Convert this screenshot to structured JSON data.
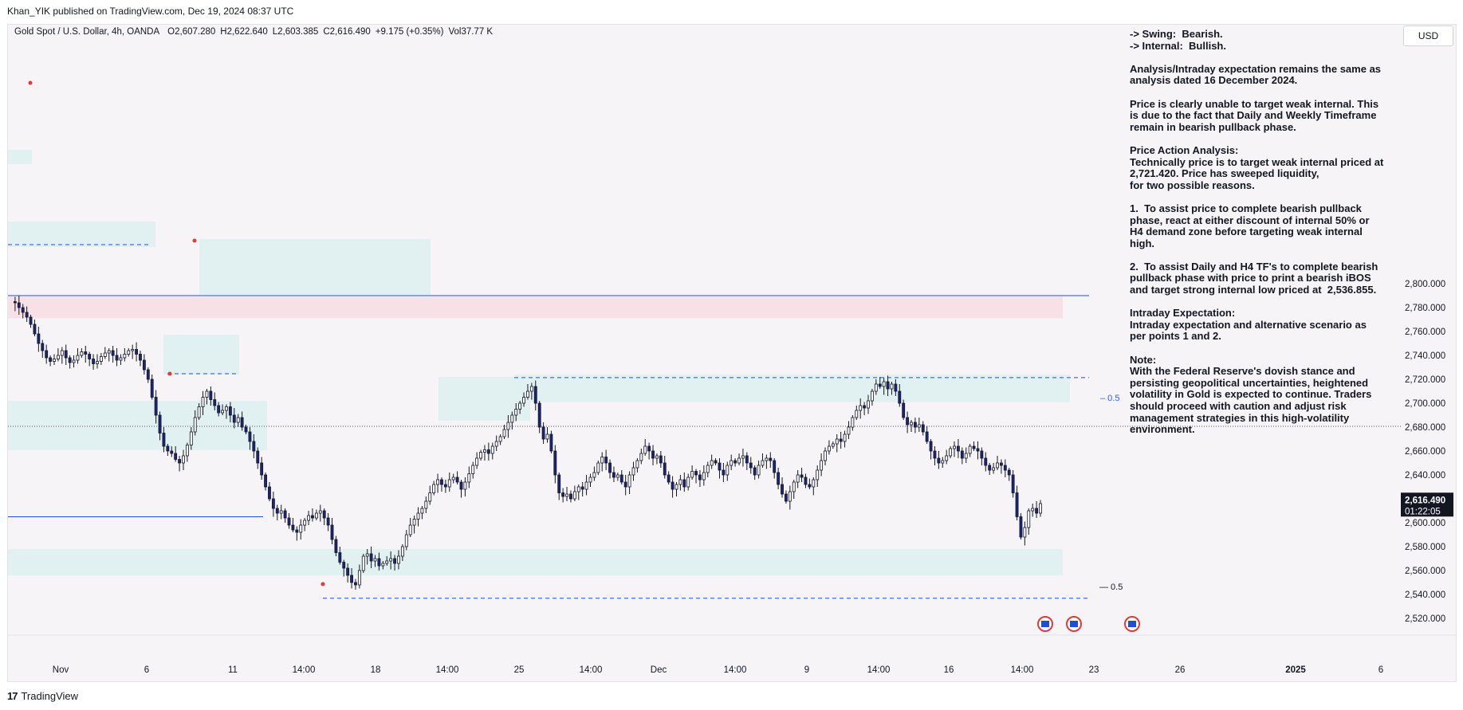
{
  "header": {
    "publisher_line": "Khan_YIK published on TradingView.com, Dec 19, 2024 08:37 UTC"
  },
  "legend": {
    "symbol": "Gold Spot / U.S. Dollar, 4h, OANDA",
    "open": "O2,607.280",
    "high": "H2,622.640",
    "low": "L2,603.385",
    "close": "C2,616.490",
    "change": "+9.175 (+0.35%)",
    "volume": "Vol37.77 K"
  },
  "currency_button": "USD",
  "analysis_text": "-> Swing:  Bearish.\n-> Internal:  Bullish.\n\nAnalysis/Intraday expectation remains the same as analysis dated 16 December 2024.\n\nPrice is clearly unable to target weak internal. This is due to the fact that Daily and Weekly Timeframe remain in bearish pullback phase.\n\nPrice Action Analysis:\nTechnically price is to target weak internal priced at 2,721.420. Price has sweeped liquidity,\nfor two possible reasons.\n\n1.  To assist price to complete bearish pullback phase, react at either discount of internal 50% or H4 demand zone before targeting weak internal high.\n\n2.  To assist Daily and H4 TF's to complete bearish pullback phase with price to print a bearish iBOS and target strong internal low priced at  2,536.855.\n\nIntraday Expectation:\nIntraday expectation and alternative scenario as per points 1 and 2.\n\nNote:\nWith the Federal Reserve's dovish stance and persisting geopolitical uncertainties, heightened volatility in Gold is expected to continue. Traders should proceed with caution and adjust risk management strategies in this high-volatility environment.",
  "price_label": {
    "price": "2,616.490",
    "countdown": "01:22:05"
  },
  "footer": {
    "brand": "TradingView",
    "logo_glyph": "17"
  },
  "colors": {
    "bull": "#ffffff",
    "bear": "#1a237e",
    "zone_supply": "#f8e1e6",
    "zone_demand": "#e1f0f1",
    "blue_line": "#1e4fd0",
    "pivot": "#e53935"
  },
  "chart_data": {
    "type": "candlestick",
    "symbol": "Gold Spot / U.S. Dollar, 4h, OANDA",
    "ylim": [
      2510,
      2810
    ],
    "y_ticks": [
      "2,800.000",
      "2,780.000",
      "2,760.000",
      "2,740.000",
      "2,720.000",
      "2,700.000",
      "2,680.000",
      "2,660.000",
      "2,640.000",
      "2,620.000",
      "2,600.000",
      "2,580.000",
      "2,560.000",
      "2,540.000",
      "2,520.000"
    ],
    "x_ticks": [
      "Nov",
      "6",
      "11",
      "14:00",
      "18",
      "14:00",
      "25",
      "14:00",
      "Dec",
      "14:00",
      "9",
      "14:00",
      "16",
      "14:00",
      "23",
      "26",
      "2025",
      "6"
    ],
    "x_ticks_bold": [
      "2025"
    ],
    "close_path": [
      2785,
      2784,
      2780,
      2776,
      2772,
      2766,
      2758,
      2750,
      2744,
      2738,
      2735,
      2737,
      2740,
      2744,
      2738,
      2734,
      2736,
      2740,
      2743,
      2741,
      2737,
      2733,
      2735,
      2739,
      2742,
      2744,
      2740,
      2736,
      2738,
      2741,
      2744,
      2745,
      2741,
      2736,
      2728,
      2720,
      2705,
      2690,
      2675,
      2664,
      2660,
      2658,
      2653,
      2650,
      2656,
      2665,
      2676,
      2688,
      2697,
      2705,
      2710,
      2703,
      2698,
      2692,
      2694,
      2697,
      2690,
      2684,
      2688,
      2680,
      2676,
      2668,
      2660,
      2650,
      2640,
      2630,
      2620,
      2612,
      2608,
      2610,
      2604,
      2598,
      2594,
      2592,
      2598,
      2602,
      2606,
      2604,
      2608,
      2610,
      2604,
      2598,
      2586,
      2575,
      2567,
      2562,
      2556,
      2550,
      2548,
      2560,
      2572,
      2574,
      2568,
      2570,
      2564,
      2566,
      2568,
      2570,
      2566,
      2572,
      2580,
      2590,
      2598,
      2603,
      2608,
      2612,
      2618,
      2625,
      2632,
      2636,
      2632,
      2630,
      2636,
      2638,
      2634,
      2628,
      2634,
      2641,
      2648,
      2654,
      2659,
      2661,
      2658,
      2664,
      2668,
      2672,
      2678,
      2684,
      2690,
      2695,
      2700,
      2705,
      2710,
      2714,
      2700,
      2680,
      2670,
      2674,
      2660,
      2640,
      2625,
      2622,
      2624,
      2620,
      2626,
      2630,
      2628,
      2634,
      2638,
      2642,
      2650,
      2655,
      2650,
      2642,
      2638,
      2640,
      2634,
      2630,
      2640,
      2646,
      2652,
      2658,
      2664,
      2660,
      2654,
      2656,
      2650,
      2640,
      2634,
      2628,
      2632,
      2636,
      2630,
      2638,
      2643,
      2640,
      2636,
      2642,
      2648,
      2652,
      2650,
      2644,
      2640,
      2648,
      2652,
      2650,
      2654,
      2656,
      2650,
      2646,
      2640,
      2648,
      2652,
      2654,
      2652,
      2642,
      2632,
      2624,
      2618,
      2626,
      2634,
      2640,
      2638,
      2632,
      2630,
      2636,
      2644,
      2652,
      2660,
      2664,
      2666,
      2670,
      2668,
      2674,
      2680,
      2688,
      2694,
      2698,
      2696,
      2702,
      2710,
      2716,
      2714,
      2718,
      2712,
      2716,
      2710,
      2700,
      2688,
      2682,
      2684,
      2680,
      2682,
      2676,
      2668,
      2660,
      2654,
      2650,
      2652,
      2656,
      2662,
      2664,
      2660,
      2654,
      2658,
      2664,
      2662,
      2660,
      2654,
      2648,
      2644,
      2646,
      2650,
      2648,
      2644,
      2640,
      2625,
      2605,
      2588,
      2596,
      2610,
      2612,
      2608,
      2616
    ],
    "annotations": {
      "supply_zone": [
        2771,
        2789
      ],
      "demand_zones": [
        [
          2701,
          2724
        ],
        [
          2556,
          2578
        ]
      ],
      "blue_lines": [
        2790,
        2605
      ],
      "dashed_levels": [
        2721.42,
        2536.855
      ],
      "current_price": 2616.49,
      "fib_labels": [
        "0.5",
        "0.5"
      ]
    }
  }
}
